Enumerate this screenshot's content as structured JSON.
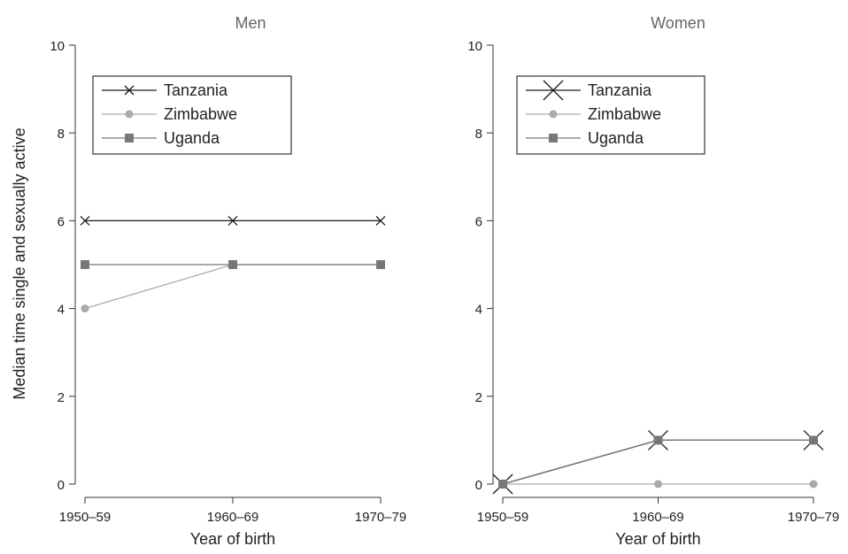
{
  "ylabel": "Median time single and sexually active",
  "chart_data": [
    {
      "type": "line",
      "title": "Men",
      "xlabel": "Year of birth",
      "ylabel": "Median time single and sexually active",
      "categories": [
        "1950–59",
        "1960–69",
        "1970–79"
      ],
      "ylim": [
        0,
        10
      ],
      "yticks": [
        "0",
        "2",
        "4",
        "6",
        "8",
        "10"
      ],
      "grid": false,
      "legend_position": "top-left",
      "series": [
        {
          "name": "Tanzania",
          "values": [
            6,
            6,
            6
          ],
          "color": "#1a1a1a",
          "marker": "x"
        },
        {
          "name": "Zimbabwe",
          "values": [
            4,
            5,
            5
          ],
          "color": "#aaaaaa",
          "marker": "circle"
        },
        {
          "name": "Uganda",
          "values": [
            5,
            5,
            5
          ],
          "color": "#777777",
          "marker": "square"
        }
      ]
    },
    {
      "type": "line",
      "title": "Women",
      "xlabel": "Year of birth",
      "ylabel": "",
      "categories": [
        "1950–59",
        "1960–69",
        "1970–79"
      ],
      "ylim": [
        0,
        10
      ],
      "yticks": [
        "0",
        "2",
        "4",
        "6",
        "8",
        "10"
      ],
      "grid": false,
      "legend_position": "top-left",
      "series": [
        {
          "name": "Tanzania",
          "values": [
            0,
            1,
            1
          ],
          "color": "#1a1a1a",
          "marker": "x"
        },
        {
          "name": "Zimbabwe",
          "values": [
            0,
            0,
            0
          ],
          "color": "#aaaaaa",
          "marker": "circle"
        },
        {
          "name": "Uganda",
          "values": [
            0,
            1,
            1
          ],
          "color": "#777777",
          "marker": "square"
        }
      ]
    }
  ]
}
